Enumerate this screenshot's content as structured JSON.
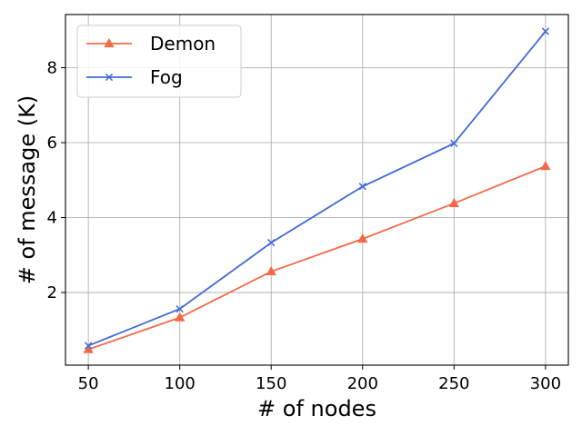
{
  "chart_data": {
    "type": "line",
    "x": [
      50,
      100,
      150,
      200,
      250,
      300
    ],
    "series": [
      {
        "name": "Demon",
        "values": [
          0.48,
          1.33,
          2.56,
          3.43,
          4.38,
          5.37
        ],
        "color": "#f4694a",
        "marker": "triangle"
      },
      {
        "name": "Fog",
        "values": [
          0.58,
          1.56,
          3.33,
          4.83,
          5.98,
          8.97
        ],
        "color": "#4169d8",
        "marker": "x"
      }
    ],
    "title": "",
    "xlabel": "# of nodes",
    "ylabel": "# of message (K)",
    "xticks": [
      50,
      100,
      150,
      200,
      250,
      300
    ],
    "yticks": [
      2,
      4,
      6,
      8
    ],
    "xlim": [
      37.5,
      312.5
    ],
    "ylim": [
      0.06,
      9.42
    ],
    "grid": true,
    "legend_position": "top-left"
  }
}
